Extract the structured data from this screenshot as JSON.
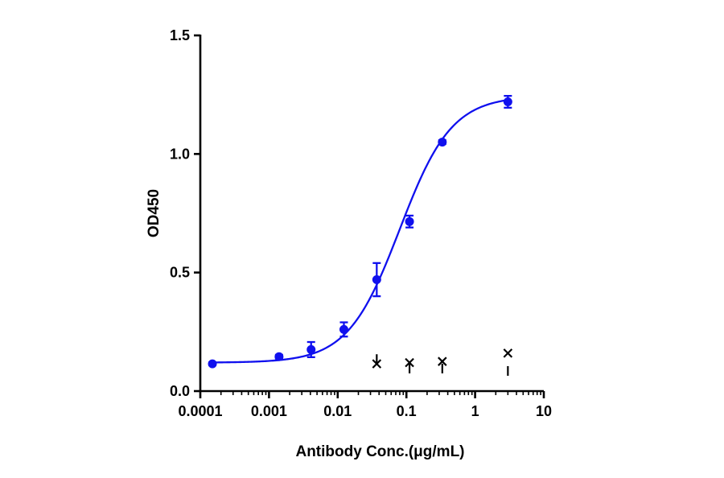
{
  "chart_data": {
    "type": "scatter",
    "xlabel": "Antibody Conc.(μg/mL)",
    "ylabel": "OD450",
    "x_scale": "log",
    "xlim": [
      0.0001,
      10
    ],
    "ylim": [
      0,
      1.5
    ],
    "x_ticks": [
      "0.0001",
      "0.001",
      "0.01",
      "0.1",
      "1",
      "10"
    ],
    "y_ticks": [
      "0.0",
      "0.5",
      "1.0",
      "1.5"
    ],
    "grid": false,
    "legend": "none",
    "series": [
      {
        "kind": "points-with-error-bars",
        "color": "#1010ee",
        "points": [
          {
            "x": 0.00015,
            "y": 0.115,
            "err": 0.006
          },
          {
            "x": 0.0014,
            "y": 0.145,
            "err": 0.008
          },
          {
            "x": 0.0041,
            "y": 0.175,
            "err": 0.032
          },
          {
            "x": 0.0123,
            "y": 0.26,
            "err": 0.03
          },
          {
            "x": 0.037,
            "y": 0.47,
            "err": 0.07
          },
          {
            "x": 0.111,
            "y": 0.715,
            "err": 0.025
          },
          {
            "x": 0.333,
            "y": 1.05,
            "err": 0.008
          },
          {
            "x": 3.0,
            "y": 1.22,
            "err": 0.025
          }
        ]
      },
      {
        "kind": "fitted-curve",
        "color": "#1010ee",
        "model": "4PL",
        "bottom": 0.12,
        "top": 1.245,
        "ec50": 0.08,
        "hill": 1.15
      },
      {
        "kind": "x-markers",
        "color": "#000000",
        "points": [
          {
            "x": 0.037,
            "y": 0.115
          },
          {
            "x": 0.111,
            "y": 0.12
          },
          {
            "x": 0.333,
            "y": 0.125
          },
          {
            "x": 3.0,
            "y": 0.16
          }
        ]
      },
      {
        "kind": "dash-markers",
        "color": "#000000",
        "points": [
          {
            "x": 0.037,
            "y": 0.135
          },
          {
            "x": 0.111,
            "y": 0.095
          },
          {
            "x": 0.333,
            "y": 0.095
          },
          {
            "x": 3.0,
            "y": 0.085
          }
        ]
      }
    ]
  }
}
